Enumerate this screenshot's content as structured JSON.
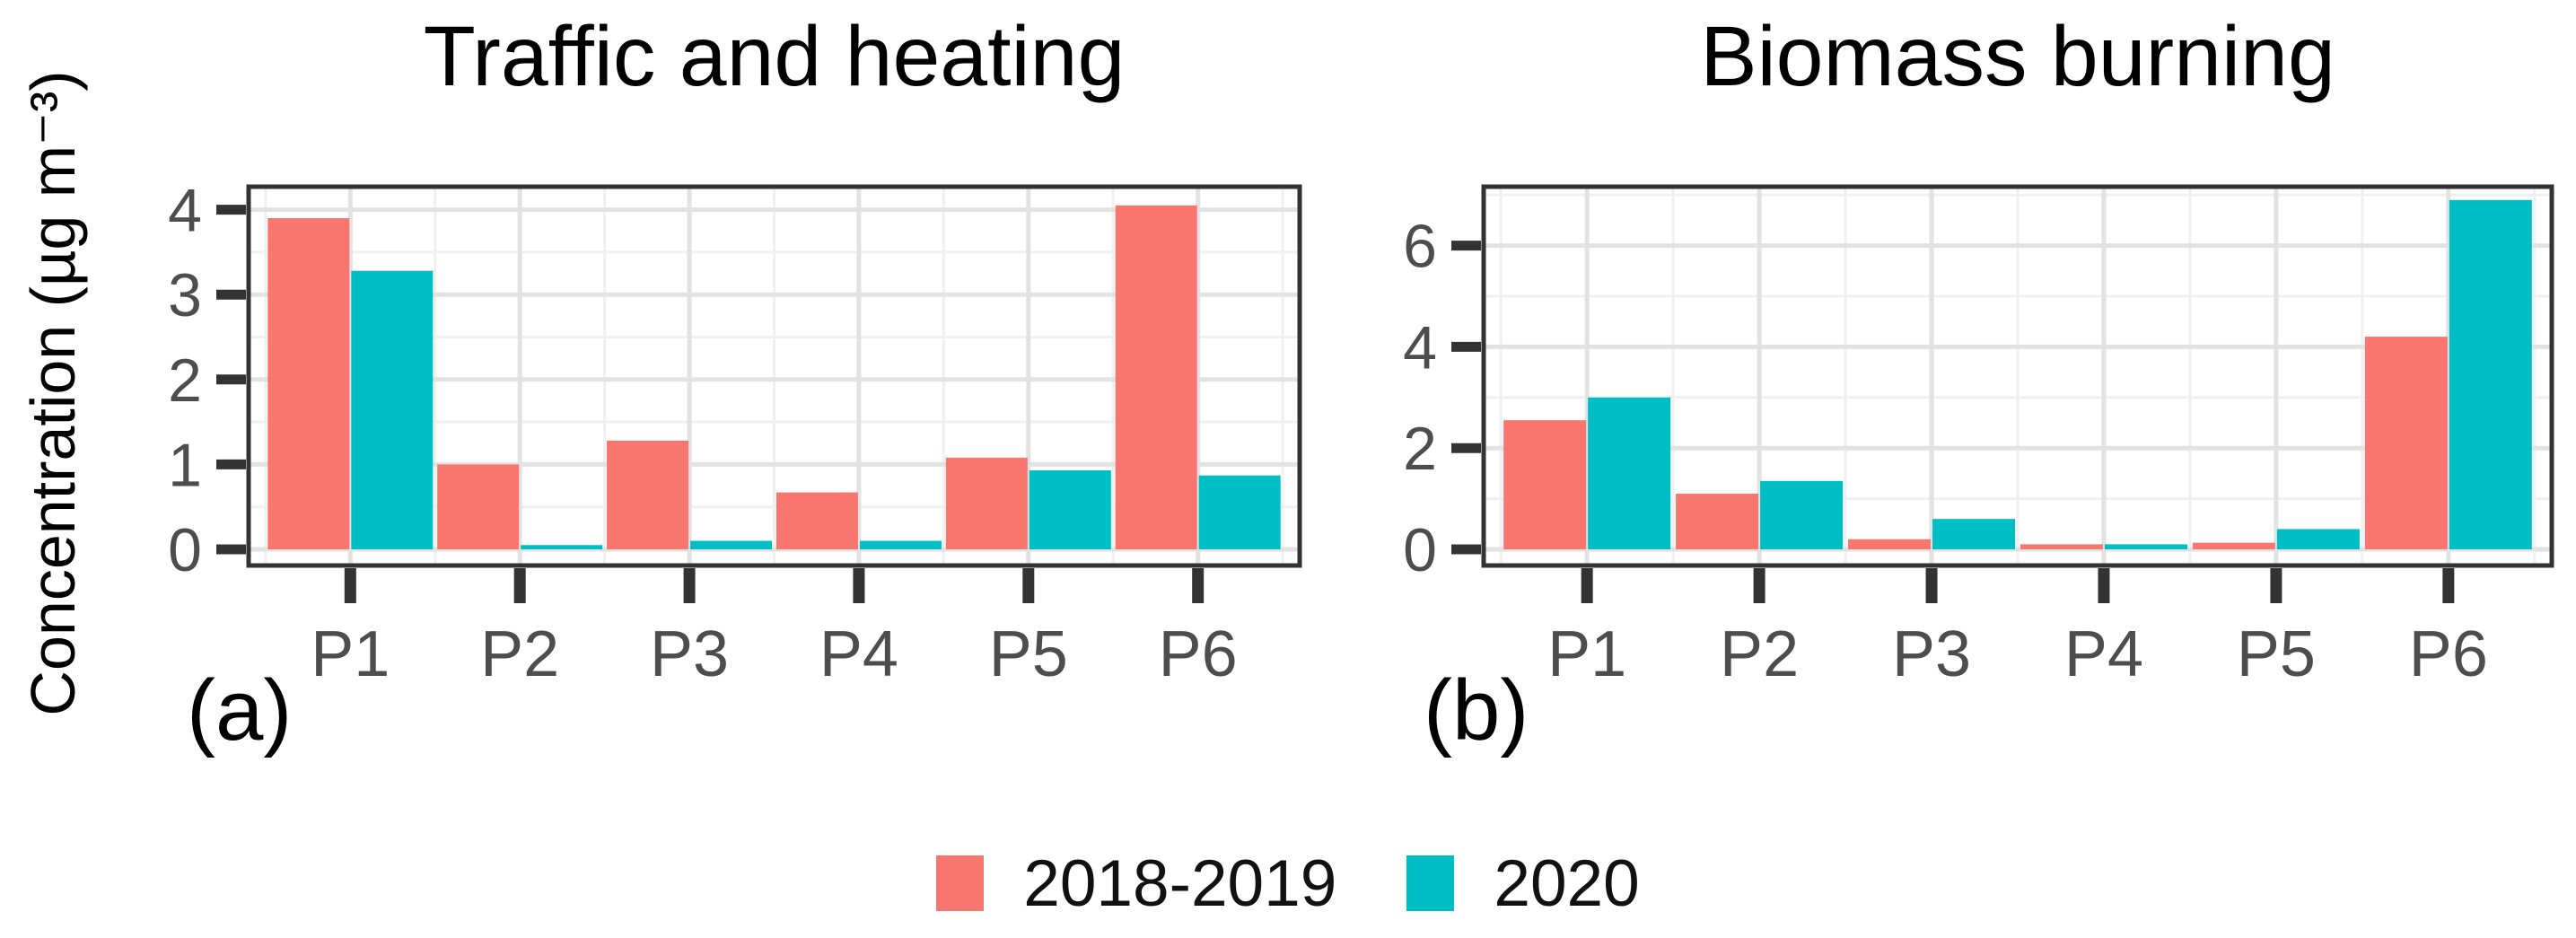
{
  "figure": {
    "ylabel": "Concentration (µg m⁻³)"
  },
  "legend": {
    "entries": [
      {
        "label": "2018-2019",
        "color": "#F8766D"
      },
      {
        "label": "2020",
        "color": "#00BFC4"
      }
    ],
    "position": "bottom"
  },
  "colors": {
    "series_2018_2019": "#F8766D",
    "series_2020": "#00BFC4",
    "panel_border": "#333333",
    "tick": "#333333",
    "axis_text": "#4D4D4D",
    "grid_major": "#E2E2E2",
    "grid_minor": "#F0F0F0",
    "background": "#FFFFFF"
  },
  "chart_data": [
    {
      "type": "bar",
      "title": "Traffic and heating",
      "panel_label": "(a)",
      "ylabel": "Concentration (µg m⁻³)",
      "categories": [
        "P1",
        "P2",
        "P3",
        "P4",
        "P5",
        "P6"
      ],
      "series": [
        {
          "name": "2018-2019",
          "color": "#F8766D",
          "values": [
            3.9,
            1.0,
            1.28,
            0.67,
            1.08,
            4.05
          ]
        },
        {
          "name": "2020",
          "color": "#00BFC4",
          "values": [
            3.28,
            0.05,
            0.1,
            0.1,
            0.93,
            0.87
          ]
        }
      ],
      "y_ticks": [
        0,
        1,
        2,
        3,
        4
      ],
      "y_minor": [
        0.5,
        1.5,
        2.5,
        3.5
      ],
      "ylim": [
        0,
        4.27
      ],
      "grid": true,
      "legend_position": "bottom"
    },
    {
      "type": "bar",
      "title": "Biomass burning",
      "panel_label": "(b)",
      "ylabel": "Concentration (µg m⁻³)",
      "categories": [
        "P1",
        "P2",
        "P3",
        "P4",
        "P5",
        "P6"
      ],
      "series": [
        {
          "name": "2018-2019",
          "color": "#F8766D",
          "values": [
            2.55,
            1.1,
            0.2,
            0.1,
            0.13,
            4.2
          ]
        },
        {
          "name": "2020",
          "color": "#00BFC4",
          "values": [
            3.0,
            1.35,
            0.6,
            0.1,
            0.4,
            6.9
          ]
        }
      ],
      "y_ticks": [
        0,
        2,
        4,
        6
      ],
      "y_minor": [
        1,
        3,
        5,
        7
      ],
      "ylim": [
        0,
        7.2
      ],
      "grid": true,
      "legend_position": "bottom"
    }
  ]
}
